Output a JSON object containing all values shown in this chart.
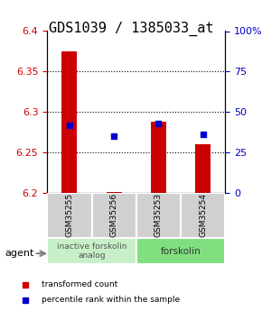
{
  "title": "GDS1039 / 1385033_at",
  "samples": [
    "GSM35255",
    "GSM35256",
    "GSM35253",
    "GSM35254"
  ],
  "bar_values": [
    6.375,
    6.201,
    6.288,
    6.26
  ],
  "bar_base": 6.2,
  "blue_values": [
    42,
    35,
    43,
    36
  ],
  "ylim_left": [
    6.2,
    6.4
  ],
  "ylim_right": [
    0,
    100
  ],
  "yticks_left": [
    6.2,
    6.25,
    6.3,
    6.35,
    6.4
  ],
  "yticks_right": [
    0,
    25,
    50,
    75,
    100
  ],
  "ytick_labels_right": [
    "0",
    "25",
    "50",
    "75",
    "100%"
  ],
  "group1": {
    "label": "inactive forskolin\nanalog",
    "samples": [
      0,
      1
    ],
    "color": "#c8f0c8"
  },
  "group2": {
    "label": "forskolin",
    "samples": [
      2,
      3
    ],
    "color": "#80e080"
  },
  "bar_color": "#cc0000",
  "blue_color": "#0000cc",
  "agent_label": "agent",
  "legend_bar_label": "transformed count",
  "legend_blue_label": "percentile rank within the sample",
  "background_color": "#ffffff",
  "plot_bg_color": "#ffffff",
  "sample_box_color": "#d0d0d0",
  "title_fontsize": 11,
  "tick_fontsize": 8,
  "label_fontsize": 8
}
